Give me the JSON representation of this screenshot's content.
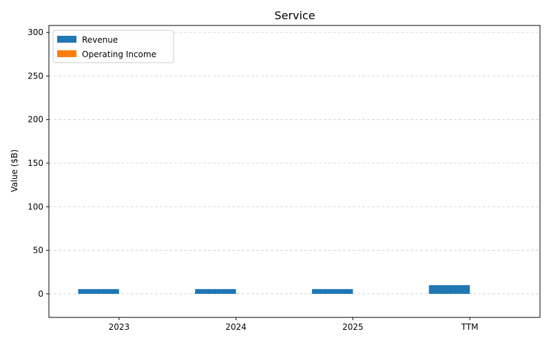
{
  "chart_data": {
    "type": "bar",
    "title": "Service",
    "xlabel": "",
    "ylabel": "Value ($B)",
    "categories": [
      "2023",
      "2024",
      "2025",
      "TTM"
    ],
    "series": [
      {
        "name": "Revenue",
        "color": "#1f77b4",
        "values": [
          5.5,
          5.5,
          5.5,
          10.0
        ]
      },
      {
        "name": "Operating Income",
        "color": "#ff7f0e",
        "values": [
          0,
          0,
          0,
          0
        ]
      }
    ],
    "ylim": [
      -27,
      308
    ],
    "yticks": [
      0,
      50,
      100,
      150,
      200,
      250,
      300
    ],
    "grid": true,
    "legend_position": "top-left"
  }
}
